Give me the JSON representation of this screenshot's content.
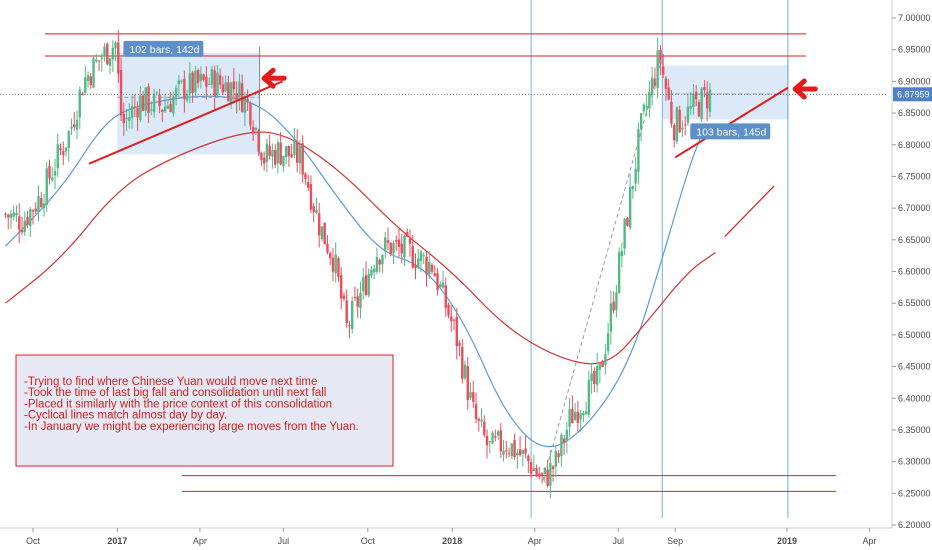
{
  "chart_data": {
    "type": "candlestick",
    "y_axis": {
      "ylim": [
        6.19,
        7.02
      ],
      "ticks": [
        7.0,
        6.95,
        6.9,
        6.85,
        6.8,
        6.75,
        6.7,
        6.65,
        6.6,
        6.55,
        6.5,
        6.45,
        6.4,
        6.35,
        6.3,
        6.25,
        6.2
      ],
      "tick_labels": [
        "7.00000",
        "6.95000",
        "6.90000",
        "6.85000",
        "6.80000",
        "6.75000",
        "6.70000",
        "6.65000",
        "6.60000",
        "6.55000",
        "6.50000",
        "6.45000",
        "6.40000",
        "6.35000",
        "6.30000",
        "6.25000",
        "6.20000"
      ]
    },
    "x_axis": {
      "tick_labels": [
        "Oct",
        "2017",
        "Apr",
        "Jul",
        "Oct",
        "2018",
        "Apr",
        "Jul",
        "Sep",
        "2019",
        "Apr"
      ],
      "bold_labels": [
        "2017",
        "2018",
        "2019"
      ],
      "tick_dates": [
        "2016-10-01",
        "2017-01-01",
        "2017-04-01",
        "2017-07-01",
        "2017-10-01",
        "2018-01-01",
        "2018-04-01",
        "2018-07-01",
        "2018-09-01",
        "2019-01-01",
        "2019-04-01"
      ]
    },
    "last_price": "6.87959",
    "price_key_points": [
      {
        "date": "2016-09-01",
        "value": 6.69
      },
      {
        "date": "2016-09-20",
        "value": 6.68
      },
      {
        "date": "2016-10-10",
        "value": 6.72
      },
      {
        "date": "2016-10-25",
        "value": 6.77
      },
      {
        "date": "2016-11-10",
        "value": 6.82
      },
      {
        "date": "2016-11-25",
        "value": 6.9
      },
      {
        "date": "2016-12-15",
        "value": 6.94
      },
      {
        "date": "2016-12-30",
        "value": 6.96
      },
      {
        "date": "2017-01-06",
        "value": 6.83
      },
      {
        "date": "2017-01-25",
        "value": 6.87
      },
      {
        "date": "2017-02-20",
        "value": 6.86
      },
      {
        "date": "2017-03-15",
        "value": 6.89
      },
      {
        "date": "2017-04-15",
        "value": 6.9
      },
      {
        "date": "2017-05-10",
        "value": 6.89
      },
      {
        "date": "2017-05-25",
        "value": 6.86
      },
      {
        "date": "2017-06-10",
        "value": 6.78
      },
      {
        "date": "2017-06-25",
        "value": 6.79
      },
      {
        "date": "2017-07-20",
        "value": 6.78
      },
      {
        "date": "2017-08-10",
        "value": 6.67
      },
      {
        "date": "2017-08-25",
        "value": 6.62
      },
      {
        "date": "2017-09-08",
        "value": 6.51
      },
      {
        "date": "2017-09-25",
        "value": 6.57
      },
      {
        "date": "2017-10-10",
        "value": 6.63
      },
      {
        "date": "2017-10-25",
        "value": 6.64
      },
      {
        "date": "2017-11-15",
        "value": 6.63
      },
      {
        "date": "2017-12-10",
        "value": 6.61
      },
      {
        "date": "2018-01-05",
        "value": 6.5
      },
      {
        "date": "2018-01-25",
        "value": 6.37
      },
      {
        "date": "2018-02-10",
        "value": 6.32
      },
      {
        "date": "2018-03-01",
        "value": 6.33
      },
      {
        "date": "2018-03-25",
        "value": 6.3
      },
      {
        "date": "2018-04-10",
        "value": 6.27
      },
      {
        "date": "2018-04-25",
        "value": 6.3
      },
      {
        "date": "2018-05-10",
        "value": 6.37
      },
      {
        "date": "2018-05-25",
        "value": 6.4
      },
      {
        "date": "2018-06-10",
        "value": 6.43
      },
      {
        "date": "2018-06-25",
        "value": 6.55
      },
      {
        "date": "2018-07-10",
        "value": 6.68
      },
      {
        "date": "2018-07-25",
        "value": 6.82
      },
      {
        "date": "2018-08-15",
        "value": 6.94
      },
      {
        "date": "2018-08-30",
        "value": 6.83
      },
      {
        "date": "2018-09-15",
        "value": 6.85
      },
      {
        "date": "2018-09-30",
        "value": 6.87
      },
      {
        "date": "2018-10-10",
        "value": 6.88
      }
    ],
    "moving_averages": [
      {
        "color": "#5b9bd5",
        "points": [
          {
            "date": "2016-09-01",
            "value": 6.64
          },
          {
            "date": "2016-11-01",
            "value": 6.73
          },
          {
            "date": "2016-12-15",
            "value": 6.83
          },
          {
            "date": "2017-01-15",
            "value": 6.86
          },
          {
            "date": "2017-04-01",
            "value": 6.88
          },
          {
            "date": "2017-06-01",
            "value": 6.87
          },
          {
            "date": "2017-07-15",
            "value": 6.81
          },
          {
            "date": "2017-09-01",
            "value": 6.71
          },
          {
            "date": "2017-10-15",
            "value": 6.63
          },
          {
            "date": "2017-12-01",
            "value": 6.61
          },
          {
            "date": "2018-01-15",
            "value": 6.52
          },
          {
            "date": "2018-03-01",
            "value": 6.37
          },
          {
            "date": "2018-04-15",
            "value": 6.31
          },
          {
            "date": "2018-06-01",
            "value": 6.36
          },
          {
            "date": "2018-07-15",
            "value": 6.46
          },
          {
            "date": "2018-08-20",
            "value": 6.63
          },
          {
            "date": "2018-09-15",
            "value": 6.76
          },
          {
            "date": "2018-10-01",
            "value": 6.82
          }
        ]
      },
      {
        "color": "#d32f2f",
        "points": [
          {
            "date": "2016-09-01",
            "value": 6.55
          },
          {
            "date": "2016-11-01",
            "value": 6.62
          },
          {
            "date": "2017-01-01",
            "value": 6.73
          },
          {
            "date": "2017-03-01",
            "value": 6.78
          },
          {
            "date": "2017-05-15",
            "value": 6.82
          },
          {
            "date": "2017-07-01",
            "value": 6.82
          },
          {
            "date": "2017-09-01",
            "value": 6.76
          },
          {
            "date": "2017-11-01",
            "value": 6.67
          },
          {
            "date": "2018-01-01",
            "value": 6.6
          },
          {
            "date": "2018-03-01",
            "value": 6.51
          },
          {
            "date": "2018-05-01",
            "value": 6.46
          },
          {
            "date": "2018-06-20",
            "value": 6.45
          },
          {
            "date": "2018-08-01",
            "value": 6.52
          },
          {
            "date": "2018-09-15",
            "value": 6.6
          },
          {
            "date": "2018-10-15",
            "value": 6.63
          }
        ]
      }
    ],
    "horizontal_lines": [
      6.975,
      6.94,
      6.278,
      6.253
    ],
    "vertical_lines": [
      "2018-03-28",
      "2018-08-18",
      "2019-01-02"
    ],
    "trend_lines": [
      {
        "from": {
          "date": "2016-12-01",
          "value": 6.77
        },
        "to": {
          "date": "2017-06-30",
          "value": 6.9
        }
      },
      {
        "from": {
          "date": "2018-09-01",
          "value": 6.78
        },
        "to": {
          "date": "2019-01-02",
          "value": 6.89
        }
      }
    ],
    "ranges": [
      {
        "label": "102 bars, 142d",
        "from": "2017-01-01",
        "to": "2017-06-05",
        "high": 6.945,
        "low": 6.785
      },
      {
        "label": "103 bars, 145d",
        "from": "2018-08-18",
        "to": "2019-01-02",
        "high": 6.925,
        "low": 6.84
      }
    ],
    "note": [
      "-Trying to find where Chinese Yuan would move next time",
      "-Took the time of last big fall and consolidation until next fall",
      "-Placed it similarly with the price context of this consolidation",
      "-Cyclical lines match almost day by day.",
      "-In January we might be experiencing large moves from the Yuan."
    ]
  },
  "colors": {
    "up": "#53b987",
    "down": "#eb4d5c",
    "annotation_red": "#e31b1b",
    "range_fill": "#cfe2f7",
    "range_label_bg": "#5d8fc9",
    "vertical_line": "#6fb1df",
    "note_fill": "#e6e9f4",
    "price_label_bg": "#4d82c4"
  }
}
